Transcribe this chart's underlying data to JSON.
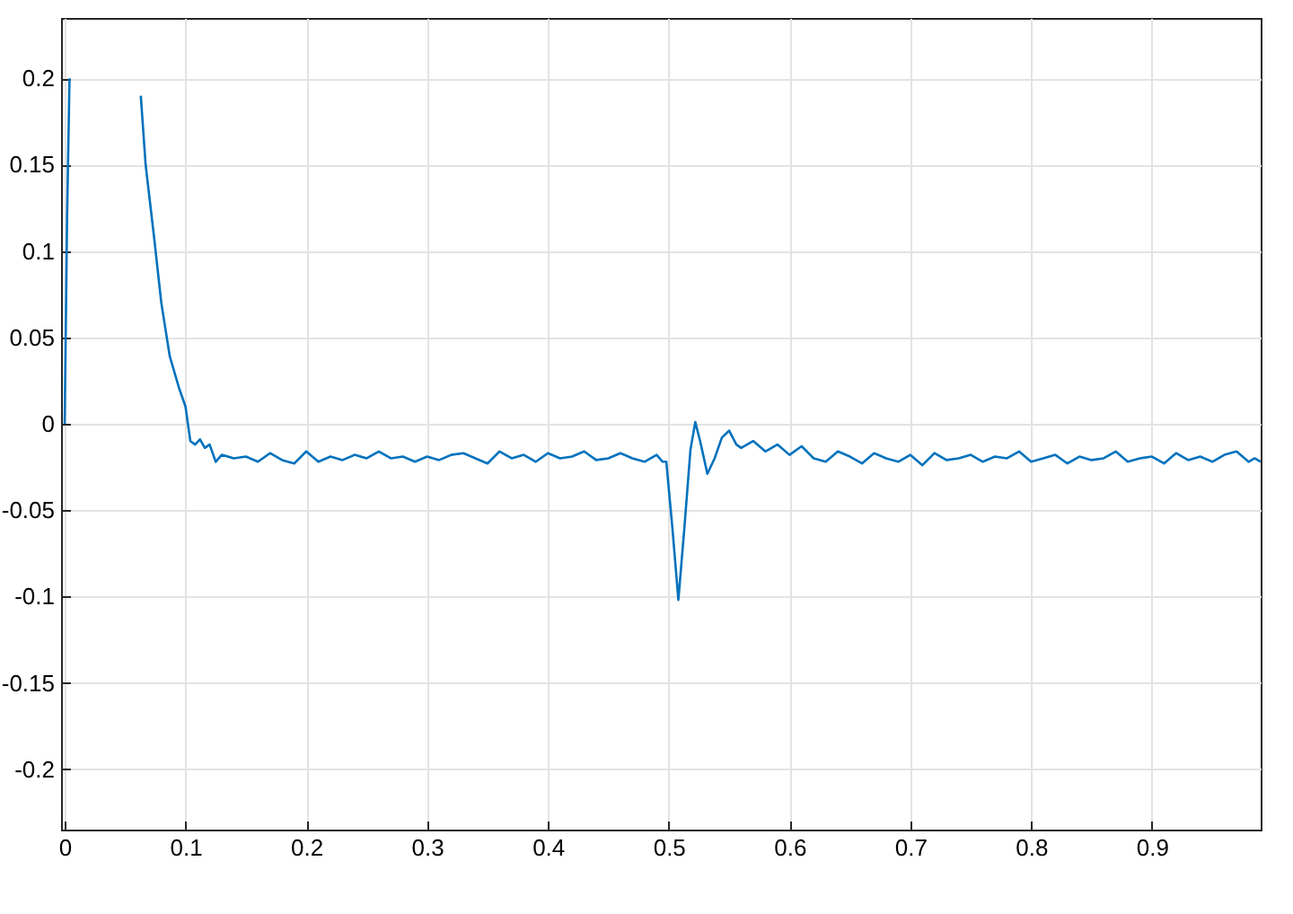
{
  "chart_data": {
    "type": "line",
    "xlim": [
      -0.003,
      0.99
    ],
    "ylim": [
      -0.235,
      0.235
    ],
    "xticks": [
      0,
      0.1,
      0.2,
      0.3,
      0.4,
      0.5,
      0.6,
      0.7,
      0.8,
      0.9
    ],
    "yticks": [
      -0.2,
      -0.15,
      -0.1,
      -0.05,
      0,
      0.05,
      0.1,
      0.15,
      0.2
    ],
    "grid": true,
    "series": [
      {
        "color": "#0072bd",
        "x": [
          0,
          0.002,
          0.004,
          0.005,
          0.03,
          0.059,
          0.063,
          0.067,
          0.074,
          0.08,
          0.087,
          0.095,
          0.1,
          0.104,
          0.108,
          0.112,
          0.116,
          0.12,
          0.125,
          0.13,
          0.14,
          0.15,
          0.16,
          0.17,
          0.18,
          0.19,
          0.2,
          0.21,
          0.22,
          0.23,
          0.24,
          0.25,
          0.26,
          0.27,
          0.28,
          0.29,
          0.3,
          0.31,
          0.32,
          0.33,
          0.34,
          0.35,
          0.36,
          0.37,
          0.38,
          0.39,
          0.4,
          0.41,
          0.42,
          0.43,
          0.44,
          0.45,
          0.46,
          0.47,
          0.48,
          0.49,
          0.495,
          0.498,
          0.503,
          0.508,
          0.513,
          0.518,
          0.522,
          0.526,
          0.532,
          0.538,
          0.544,
          0.55,
          0.556,
          0.56,
          0.57,
          0.58,
          0.59,
          0.6,
          0.61,
          0.62,
          0.63,
          0.64,
          0.65,
          0.66,
          0.67,
          0.68,
          0.69,
          0.7,
          0.71,
          0.72,
          0.73,
          0.74,
          0.75,
          0.76,
          0.77,
          0.78,
          0.79,
          0.8,
          0.81,
          0.82,
          0.83,
          0.84,
          0.85,
          0.86,
          0.87,
          0.88,
          0.89,
          0.9,
          0.91,
          0.92,
          0.93,
          0.94,
          0.95,
          0.96,
          0.97,
          0.98,
          0.985,
          0.99
        ],
        "values": [
          0,
          0.12,
          0.2,
          null,
          null,
          null,
          0.19,
          0.15,
          0.108,
          0.07,
          0.039,
          0.02,
          0.01,
          -0.01,
          -0.012,
          -0.009,
          -0.014,
          -0.012,
          -0.022,
          -0.018,
          -0.02,
          -0.019,
          -0.022,
          -0.017,
          -0.021,
          -0.023,
          -0.016,
          -0.022,
          -0.019,
          -0.021,
          -0.018,
          -0.02,
          -0.016,
          -0.02,
          -0.019,
          -0.022,
          -0.019,
          -0.021,
          -0.018,
          -0.017,
          -0.02,
          -0.023,
          -0.016,
          -0.02,
          -0.018,
          -0.022,
          -0.017,
          -0.02,
          -0.019,
          -0.016,
          -0.021,
          -0.02,
          -0.017,
          -0.02,
          -0.022,
          -0.018,
          -0.022,
          -0.022,
          -0.06,
          -0.102,
          -0.06,
          -0.015,
          0.001,
          -0.01,
          -0.029,
          -0.02,
          -0.008,
          -0.004,
          -0.012,
          -0.014,
          -0.01,
          -0.016,
          -0.012,
          -0.018,
          -0.013,
          -0.02,
          -0.022,
          -0.016,
          -0.019,
          -0.023,
          -0.017,
          -0.02,
          -0.022,
          -0.018,
          -0.024,
          -0.017,
          -0.021,
          -0.02,
          -0.018,
          -0.022,
          -0.019,
          -0.02,
          -0.016,
          -0.022,
          -0.02,
          -0.018,
          -0.023,
          -0.019,
          -0.021,
          -0.02,
          -0.016,
          -0.022,
          -0.02,
          -0.019,
          -0.023,
          -0.017,
          -0.021,
          -0.019,
          -0.022,
          -0.018,
          -0.016,
          -0.022,
          -0.02,
          -0.022
        ]
      }
    ]
  }
}
